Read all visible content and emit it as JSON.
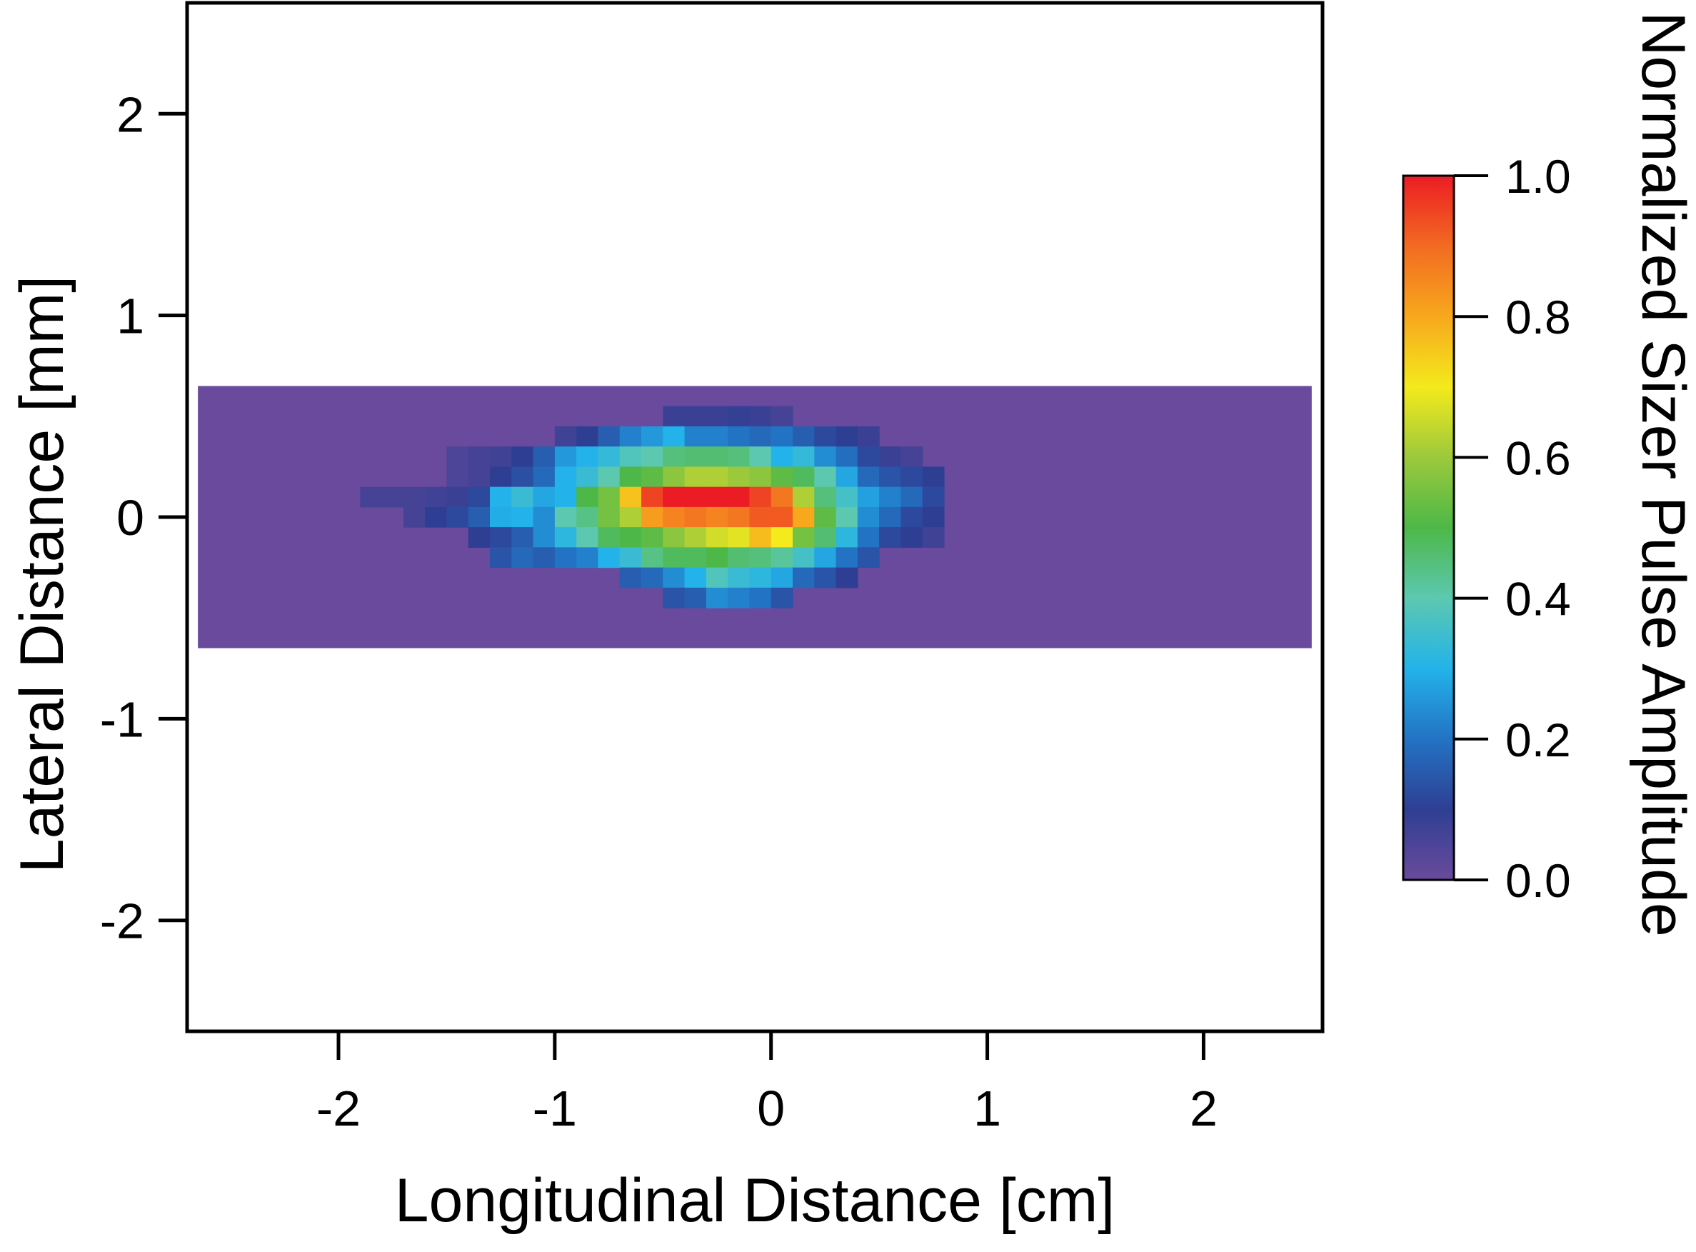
{
  "chart_data": {
    "type": "heatmap",
    "xlabel": "Longitudinal Distance [cm]",
    "ylabel": "Lateral Distance [mm]",
    "colorbar_label": "Normalized Sizer Pulse Amplitude",
    "xlim": [
      -2.7,
      2.55
    ],
    "ylim": [
      -2.55,
      2.55
    ],
    "xticks": [
      -2,
      -1,
      0,
      1,
      2
    ],
    "xtick_labels": [
      "-2",
      "-1",
      "0",
      "1",
      "2"
    ],
    "yticks": [
      2,
      1,
      0,
      -1,
      -2
    ],
    "ytick_labels": [
      "2",
      "1",
      "0",
      "-1",
      "-2"
    ],
    "colorbar_range": [
      0.0,
      1.0
    ],
    "colorbar_ticks": [
      1.0,
      0.8,
      0.6,
      0.4,
      0.2,
      0.0
    ],
    "colorbar_tick_labels": [
      "1.0",
      "0.8",
      "0.6",
      "0.4",
      "0.2",
      "0.0"
    ],
    "colormap": [
      "#6a4a9c",
      "#2e3f93",
      "#2373c4",
      "#23b3ea",
      "#5cc8b0",
      "#4db848",
      "#9cc93c",
      "#f4ea1c",
      "#f7a81d",
      "#f26b22",
      "#ec1c24"
    ],
    "background_value": 0.0,
    "grid": false,
    "x_range_of_data": [
      -2.65,
      2.5
    ],
    "y_range_of_data": [
      -0.65,
      0.65
    ],
    "x_edges": [
      -1.9,
      -1.8,
      -1.7,
      -1.6,
      -1.5,
      -1.4,
      -1.3,
      -1.2,
      -1.1,
      -1.0,
      -0.9,
      -0.8,
      -0.7,
      -0.6,
      -0.5,
      -0.4,
      -0.3,
      -0.2,
      -0.1,
      0.0,
      0.1,
      0.2,
      0.3,
      0.4,
      0.5,
      0.6,
      0.7,
      0.8,
      0.9
    ],
    "y_bins": [
      0.5,
      0.4,
      0.3,
      0.2,
      0.1,
      0.0,
      -0.1,
      -0.2,
      -0.3,
      -0.4,
      -0.5
    ],
    "y_bin_height": 0.1,
    "rows": [
      [
        null,
        null,
        null,
        null,
        null,
        null,
        null,
        null,
        null,
        null,
        null,
        null,
        null,
        null,
        0.08,
        0.08,
        0.08,
        0.09,
        0.08,
        0.06,
        null,
        null,
        null,
        null,
        null,
        null,
        null,
        null
      ],
      [
        null,
        null,
        null,
        null,
        null,
        null,
        null,
        null,
        null,
        0.07,
        0.1,
        0.16,
        0.22,
        0.26,
        0.3,
        0.22,
        0.22,
        0.2,
        0.18,
        0.2,
        0.16,
        0.12,
        0.1,
        0.08,
        null,
        null,
        null,
        null
      ],
      [
        null,
        null,
        null,
        null,
        0.05,
        0.06,
        0.07,
        0.1,
        0.16,
        0.26,
        0.3,
        0.33,
        0.38,
        0.4,
        0.45,
        0.46,
        0.46,
        0.45,
        0.4,
        0.3,
        0.33,
        0.24,
        0.19,
        0.12,
        0.08,
        0.06,
        null,
        null
      ],
      [
        null,
        null,
        null,
        null,
        0.05,
        0.06,
        0.1,
        0.13,
        0.18,
        0.3,
        0.34,
        0.4,
        0.5,
        0.52,
        0.58,
        0.62,
        0.62,
        0.6,
        0.58,
        0.52,
        0.48,
        0.4,
        0.28,
        0.18,
        0.14,
        0.12,
        0.1,
        null
      ],
      [
        0.06,
        0.06,
        0.06,
        0.07,
        0.08,
        0.12,
        0.3,
        0.34,
        0.28,
        0.3,
        0.5,
        0.55,
        0.76,
        0.95,
        1.0,
        1.0,
        1.0,
        1.0,
        0.95,
        0.88,
        0.62,
        0.45,
        0.36,
        0.27,
        0.22,
        0.18,
        0.12,
        null
      ],
      [
        null,
        null,
        0.06,
        0.1,
        0.12,
        0.16,
        0.29,
        0.3,
        0.24,
        0.4,
        0.44,
        0.55,
        0.62,
        0.82,
        0.86,
        0.88,
        0.86,
        0.88,
        0.92,
        0.92,
        0.8,
        0.52,
        0.4,
        0.24,
        0.18,
        0.12,
        0.1,
        null
      ],
      [
        null,
        null,
        null,
        null,
        null,
        0.1,
        0.12,
        0.16,
        0.24,
        0.32,
        0.4,
        0.48,
        0.5,
        0.52,
        0.58,
        0.62,
        0.66,
        0.68,
        0.77,
        0.7,
        0.55,
        0.46,
        0.32,
        0.2,
        0.12,
        0.1,
        0.07,
        null
      ],
      [
        null,
        null,
        null,
        null,
        null,
        null,
        0.14,
        0.18,
        0.16,
        0.2,
        0.22,
        0.3,
        0.34,
        0.44,
        0.48,
        0.48,
        0.5,
        0.46,
        0.45,
        0.42,
        0.36,
        0.28,
        0.2,
        0.14,
        null,
        null,
        null,
        null
      ],
      [
        null,
        null,
        null,
        null,
        null,
        null,
        null,
        null,
        null,
        null,
        null,
        null,
        0.16,
        0.18,
        0.24,
        0.3,
        0.38,
        0.34,
        0.32,
        0.28,
        0.18,
        0.14,
        0.1,
        null,
        null,
        null,
        null,
        null
      ],
      [
        null,
        null,
        null,
        null,
        null,
        null,
        null,
        null,
        null,
        null,
        null,
        null,
        null,
        null,
        0.14,
        0.16,
        0.24,
        0.22,
        0.2,
        0.14,
        null,
        null,
        null,
        null,
        null,
        null,
        null,
        null
      ]
    ]
  }
}
